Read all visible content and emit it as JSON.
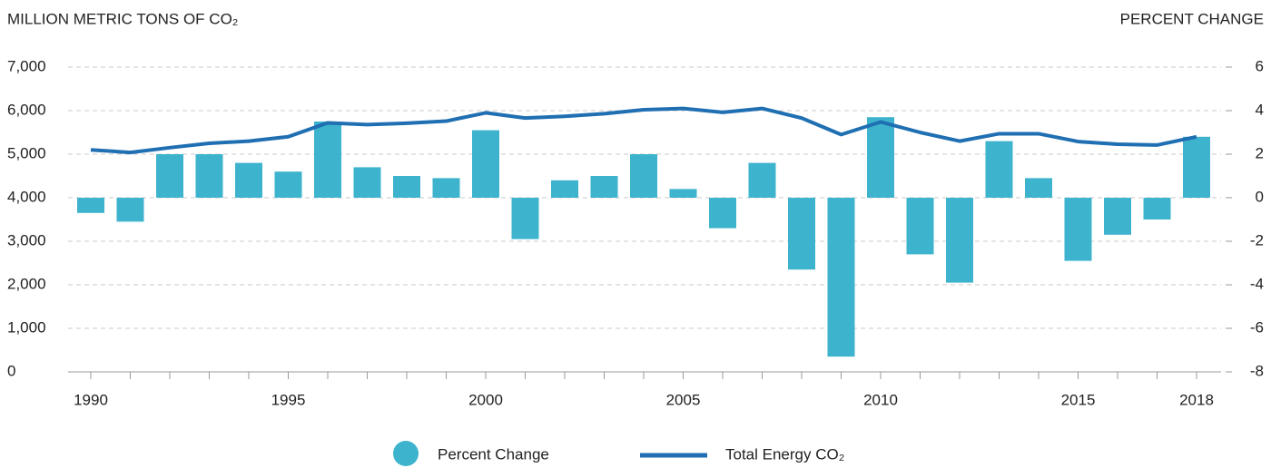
{
  "chart_data": {
    "type": "bar_line",
    "y_label": "MILLION METRIC TONS OF CO₂",
    "y2_label": "PERCENT CHANGE",
    "categories": [
      1990,
      null,
      null,
      null,
      null,
      1995,
      null,
      null,
      null,
      null,
      2000,
      null,
      null,
      null,
      null,
      2005,
      null,
      null,
      null,
      null,
      2010,
      null,
      null,
      null,
      null,
      2015,
      null,
      null,
      2018
    ],
    "series": [
      {
        "name": "Percent Change",
        "type": "bar",
        "axis": "y2",
        "color": "#3db3cd",
        "values": [
          -0.7,
          -1.1,
          2.0,
          2.0,
          1.6,
          1.2,
          3.5,
          1.4,
          1.0,
          0.9,
          3.1,
          -1.9,
          0.8,
          1.0,
          2.0,
          0.4,
          -1.4,
          1.6,
          -3.3,
          -7.3,
          3.7,
          -2.6,
          -3.9,
          2.6,
          0.9,
          -2.9,
          -1.7,
          -1.0,
          2.8
        ]
      },
      {
        "name": "Total Energy CO₂",
        "type": "line",
        "axis": "y",
        "color": "#1f6fb2",
        "values": [
          5100,
          5040,
          5150,
          5250,
          5300,
          5400,
          5720,
          5680,
          5710,
          5760,
          5950,
          5830,
          5870,
          5930,
          6020,
          6050,
          5960,
          6050,
          5830,
          5450,
          5740,
          5500,
          5300,
          5470,
          5470,
          5290,
          5230,
          5210,
          5400
        ]
      }
    ],
    "ylim": [
      0,
      7000
    ],
    "yticks": [
      0,
      {
        "value": 1000,
        "label": "1,000"
      },
      {
        "value": 2000,
        "label": "2,000"
      },
      {
        "value": 3000,
        "label": "3,000"
      },
      {
        "value": 4000,
        "label": "4,000"
      },
      {
        "value": 5000,
        "label": "5,000"
      },
      {
        "value": 6000,
        "label": "6,000"
      },
      {
        "value": 7000,
        "label": "7,000"
      }
    ],
    "y2lim": [
      -8,
      6
    ],
    "y2ticks": [
      -8,
      -6,
      -4,
      -2,
      0,
      2,
      4,
      6
    ],
    "grid": true
  }
}
